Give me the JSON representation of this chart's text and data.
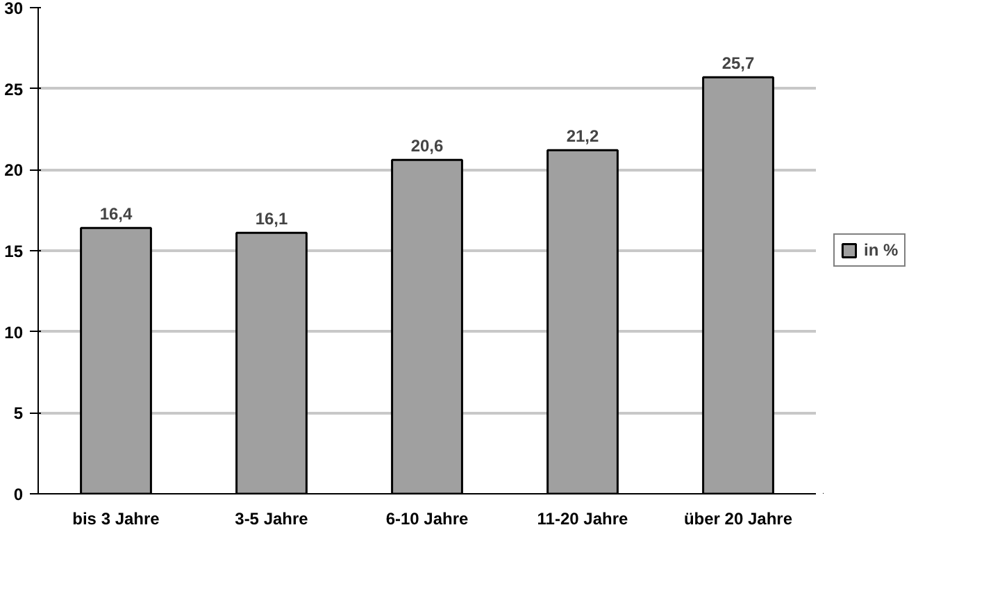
{
  "chart_data": {
    "type": "bar",
    "categories": [
      "bis 3 Jahre",
      "3-5 Jahre",
      "6-10 Jahre",
      "11-20 Jahre",
      "über 20 Jahre"
    ],
    "series": [
      {
        "name": "in %",
        "color": "#a0a0a0",
        "values": [
          16.4,
          16.1,
          20.6,
          21.2,
          25.7
        ],
        "value_labels": [
          "16,4",
          "16,1",
          "20,6",
          "21,2",
          "25,7"
        ]
      }
    ],
    "ylim": [
      0,
      30
    ],
    "yticks": [
      0,
      5,
      10,
      15,
      20,
      25,
      30
    ],
    "grid": "y",
    "legend": "right"
  }
}
